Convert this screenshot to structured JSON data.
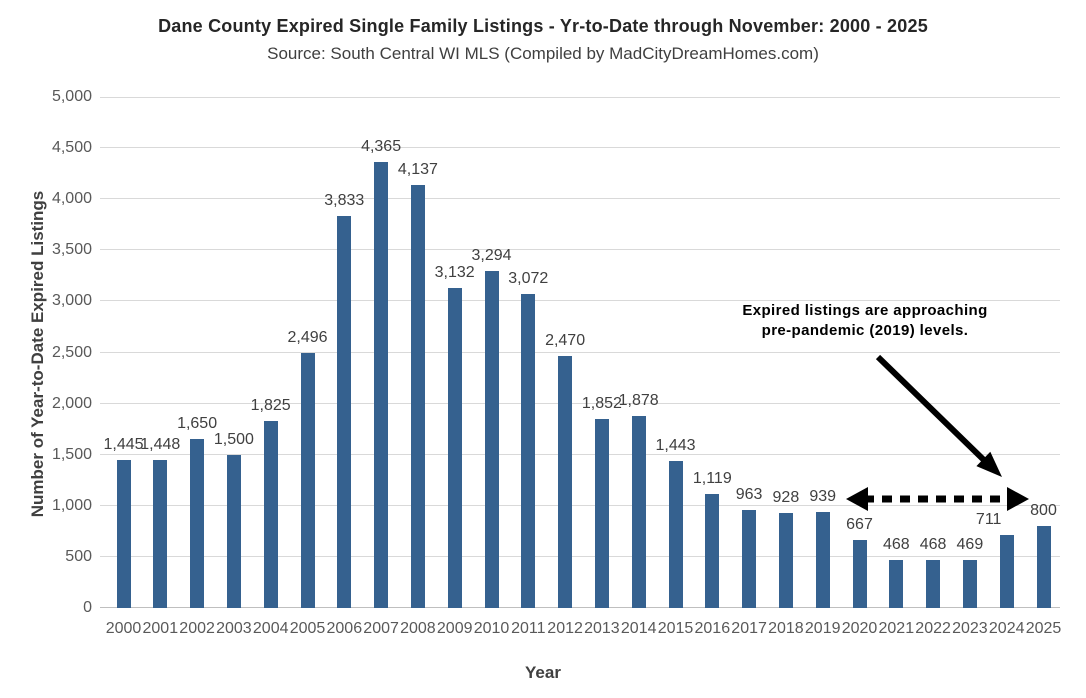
{
  "header": {
    "title": "Dane County Expired Single Family Listings - Yr-to-Date through November: 2000 - 2025",
    "subtitle": "Source: South Central WI MLS (Compiled by MadCityDreamHomes.com)"
  },
  "chart_data": {
    "type": "bar",
    "title": "Dane County Expired Single Family Listings - Yr-to-Date through November: 2000 - 2025",
    "subtitle": "Source: South Central WI MLS (Compiled by MadCityDreamHomes.com)",
    "xlabel": "Year",
    "ylabel": "Number of Year-to-Date Expired Listings",
    "categories": [
      "2000",
      "2001",
      "2002",
      "2003",
      "2004",
      "2005",
      "2006",
      "2007",
      "2008",
      "2009",
      "2010",
      "2011",
      "2012",
      "2013",
      "2014",
      "2015",
      "2016",
      "2017",
      "2018",
      "2019",
      "2020",
      "2021",
      "2022",
      "2023",
      "2024",
      "2025"
    ],
    "values": [
      1445,
      1448,
      1650,
      1500,
      1825,
      2496,
      3833,
      4365,
      4137,
      3132,
      3294,
      3072,
      2470,
      1852,
      1878,
      1443,
      1119,
      963,
      928,
      939,
      667,
      468,
      468,
      469,
      711,
      800
    ],
    "value_labels": [
      "1,445",
      "1,448",
      "1,650",
      "1,500",
      "1,825",
      "2,496",
      "3,833",
      "4,365",
      "4,137",
      "3,132",
      "3,294",
      "3,072",
      "2,470",
      "1,852",
      "1,878",
      "1,443",
      "1,119",
      "963",
      "928",
      "939",
      "667",
      "468",
      "468",
      "469",
      "711",
      "800"
    ],
    "ylim": [
      0,
      5000
    ],
    "ytick_interval": 500,
    "yticks": [
      "0",
      "500",
      "1,000",
      "1,500",
      "2,000",
      "2,500",
      "3,000",
      "3,500",
      "4,000",
      "4,500",
      "5,000"
    ],
    "grid": true,
    "legend": false,
    "bar_color": "#35618F",
    "gridline_color": "#d9d9d9",
    "label_dx": {
      "24": -18
    }
  },
  "annotation": {
    "line1": "Expired listings are approaching",
    "line2": "pre-pandemic (2019) levels.",
    "arrow_color": "#000000"
  }
}
